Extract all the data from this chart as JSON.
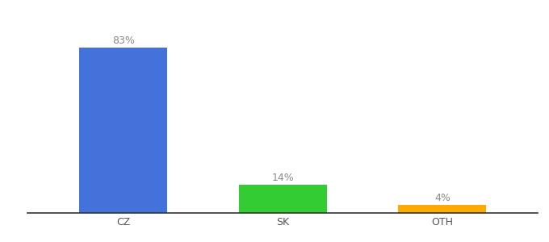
{
  "categories": [
    "CZ",
    "SK",
    "OTH"
  ],
  "values": [
    83,
    14,
    4
  ],
  "bar_colors": [
    "#4472db",
    "#33cc33",
    "#ffaa00"
  ],
  "labels": [
    "83%",
    "14%",
    "4%"
  ],
  "background_color": "#ffffff",
  "label_fontsize": 9,
  "tick_fontsize": 9,
  "bar_width": 0.55,
  "ylim": [
    0,
    97
  ],
  "label_color": "#888888",
  "tick_color": "#555555",
  "spine_color": "#333333"
}
